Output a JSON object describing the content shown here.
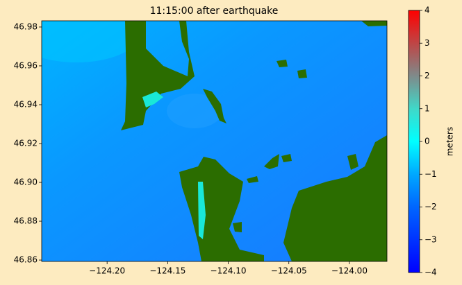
{
  "chart_data": {
    "type": "heatmap",
    "title": "11:15:00 after earthquake",
    "xlim": [
      -124.254,
      -123.969
    ],
    "xticks": [
      {
        "value": -124.2,
        "label": "−124.20"
      },
      {
        "value": -124.15,
        "label": "−124.15"
      },
      {
        "value": -124.1,
        "label": "−124.10"
      },
      {
        "value": -124.05,
        "label": "−124.05"
      },
      {
        "value": -124.0,
        "label": "−124.00"
      }
    ],
    "ylim": [
      46.8593,
      46.9832
    ],
    "yticks": [
      {
        "value": 46.86,
        "label": "46.86"
      },
      {
        "value": 46.88,
        "label": "46.88"
      },
      {
        "value": 46.9,
        "label": "46.90"
      },
      {
        "value": 46.92,
        "label": "46.92"
      },
      {
        "value": 46.94,
        "label": "46.94"
      },
      {
        "value": 46.96,
        "label": "46.96"
      },
      {
        "value": 46.98,
        "label": "46.98"
      }
    ],
    "colorbar": {
      "label": "meters",
      "lim": [
        -4,
        4
      ],
      "ticks": [
        {
          "value": -4,
          "label": "−4"
        },
        {
          "value": -3,
          "label": "−3"
        },
        {
          "value": -2,
          "label": "−2"
        },
        {
          "value": -1,
          "label": "−1"
        },
        0,
        1,
        2,
        3,
        4
      ],
      "stops": [
        [
          -4,
          "#0000ff"
        ],
        [
          -2,
          "#0066ff"
        ],
        [
          -1,
          "#00a8ff"
        ],
        [
          0,
          "#00ffff"
        ],
        [
          1,
          "#40d8c8"
        ],
        [
          2,
          "#7f8a8a"
        ],
        [
          4,
          "#ff0000"
        ]
      ]
    }
  }
}
